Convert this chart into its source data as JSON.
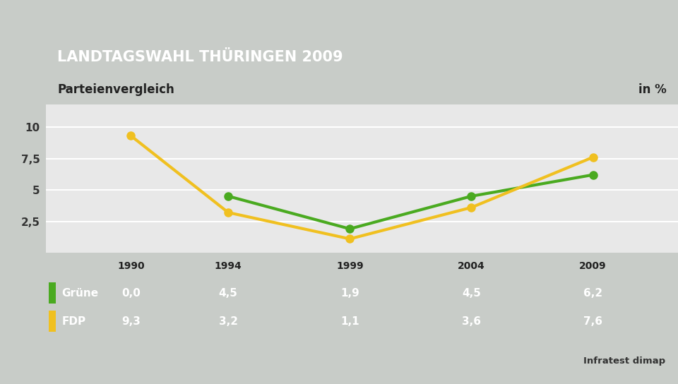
{
  "title": "LANDTAGSWAHL THÜRINGEN 2009",
  "subtitle": "Parteienvergleich",
  "unit": "in %",
  "source": "Infratest dimap",
  "years": [
    1990,
    1994,
    1999,
    2004,
    2009
  ],
  "series": [
    {
      "name": "Grüne",
      "values": [
        0.0,
        4.5,
        1.9,
        4.5,
        6.2
      ],
      "color": "#4aaa20",
      "plot_from": 1
    },
    {
      "name": "FDP",
      "values": [
        9.3,
        3.2,
        1.1,
        3.6,
        7.6
      ],
      "color": "#f0c020",
      "plot_from": 0
    }
  ],
  "yticks": [
    2.5,
    5.0,
    7.5,
    10.0
  ],
  "ylim": [
    0,
    11.8
  ],
  "xlim_left": 1986.5,
  "xlim_right": 2012.5,
  "title_bg_color": "#1a3a7a",
  "title_text_color": "#ffffff",
  "subtitle_bg_color": "#f5f5f5",
  "subtitle_text_color": "#222222",
  "table_bg_color": "#4a72a8",
  "table_text_color": "#ffffff",
  "table_header_bg": "#f0f0f0",
  "table_header_text": "#222222",
  "background_color": "#c8ccc8",
  "chart_bg_color": "#e8e8e8",
  "grid_color": "#ffffff",
  "line_width": 3.0,
  "marker_size": 8
}
